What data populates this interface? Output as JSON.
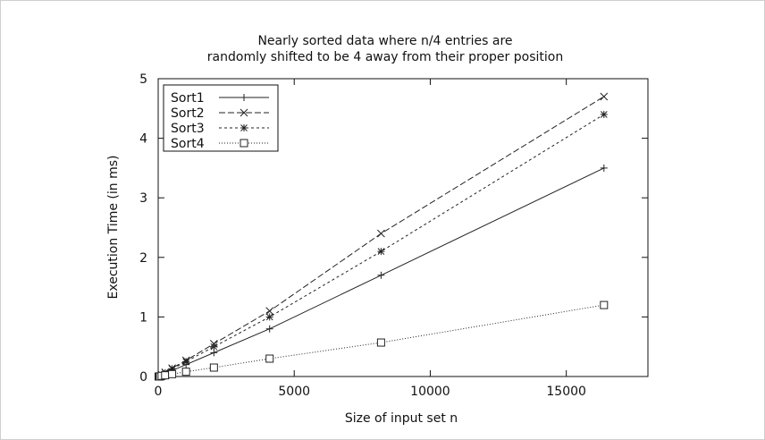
{
  "chart_data": {
    "type": "line",
    "title": [
      "Nearly sorted data where n/4 entries are",
      "randomly shifted to be 4 away from their proper position"
    ],
    "xlabel": "Size of input set n",
    "ylabel": "Execution Time (in ms)",
    "xlim": [
      0,
      18000
    ],
    "ylim": [
      0,
      5
    ],
    "xticks": [
      0,
      5000,
      10000,
      15000
    ],
    "yticks": [
      0,
      1,
      2,
      3,
      4,
      5
    ],
    "grid": false,
    "legend_position": "top-left",
    "series": [
      {
        "name": "Sort1",
        "marker": "plus",
        "dash": "solid",
        "points": [
          [
            16,
            0.0
          ],
          [
            32,
            0.0
          ],
          [
            64,
            0.01
          ],
          [
            128,
            0.02
          ],
          [
            256,
            0.05
          ],
          [
            512,
            0.1
          ],
          [
            1024,
            0.2
          ],
          [
            2048,
            0.4
          ],
          [
            4096,
            0.8
          ],
          [
            8192,
            1.7
          ],
          [
            16384,
            3.5
          ]
        ]
      },
      {
        "name": "Sort2",
        "marker": "x",
        "dash": "dashed",
        "points": [
          [
            16,
            0.0
          ],
          [
            32,
            0.0
          ],
          [
            64,
            0.01
          ],
          [
            128,
            0.03
          ],
          [
            256,
            0.07
          ],
          [
            512,
            0.14
          ],
          [
            1024,
            0.27
          ],
          [
            2048,
            0.55
          ],
          [
            4096,
            1.1
          ],
          [
            8192,
            2.4
          ],
          [
            16384,
            4.7
          ]
        ]
      },
      {
        "name": "Sort3",
        "marker": "star",
        "dash": "short-dashed",
        "points": [
          [
            16,
            0.0
          ],
          [
            32,
            0.0
          ],
          [
            64,
            0.01
          ],
          [
            128,
            0.03
          ],
          [
            256,
            0.06
          ],
          [
            512,
            0.13
          ],
          [
            1024,
            0.25
          ],
          [
            2048,
            0.5
          ],
          [
            4096,
            1.0
          ],
          [
            8192,
            2.1
          ],
          [
            16384,
            4.4
          ]
        ]
      },
      {
        "name": "Sort4",
        "marker": "square",
        "dash": "dotted",
        "points": [
          [
            16,
            0.0
          ],
          [
            32,
            0.0
          ],
          [
            64,
            0.0
          ],
          [
            128,
            0.01
          ],
          [
            256,
            0.02
          ],
          [
            512,
            0.04
          ],
          [
            1024,
            0.08
          ],
          [
            2048,
            0.15
          ],
          [
            4096,
            0.3
          ],
          [
            8192,
            0.57
          ],
          [
            16384,
            1.2
          ]
        ]
      }
    ]
  }
}
